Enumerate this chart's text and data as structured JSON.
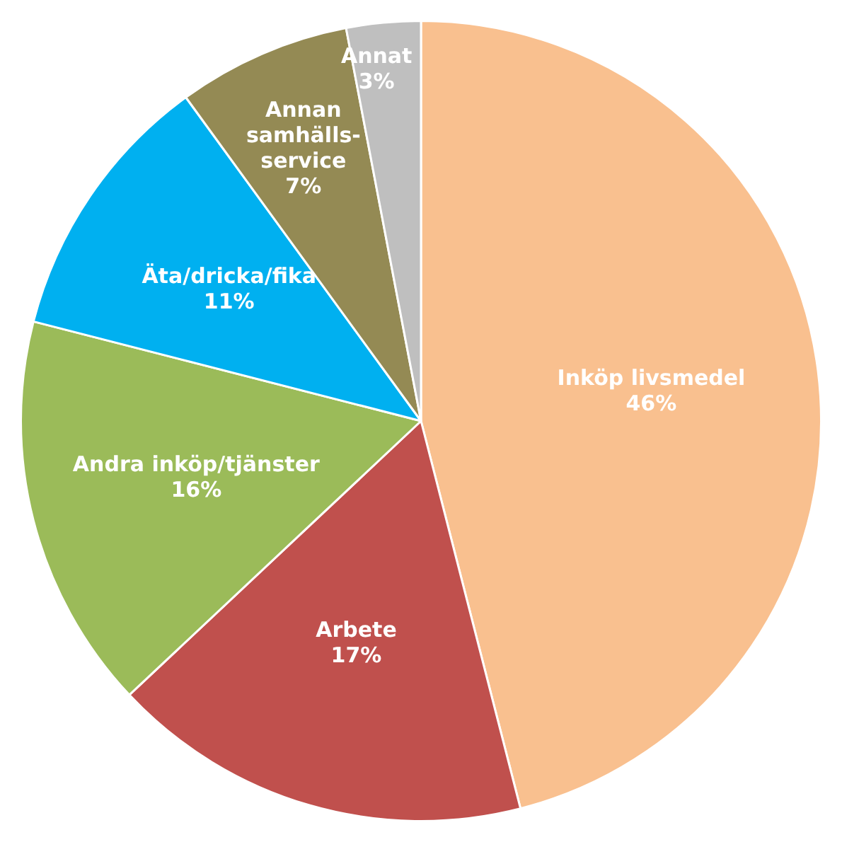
{
  "chart_data": {
    "type": "pie",
    "categories": [
      "Inköp livsmedel",
      "Arbete",
      "Andra inköp/tjänster",
      "Äta/dricka/fika",
      "Annan samhälls-service",
      "Annat"
    ],
    "values": [
      46,
      17,
      16,
      11,
      7,
      3
    ],
    "colors": [
      "#f9c08f",
      "#c0504d",
      "#9bbb59",
      "#00b0f0",
      "#948a54",
      "#bfbfbf"
    ],
    "value_labels": [
      "46%",
      "17%",
      "16%",
      "11%",
      "7%",
      "3%"
    ],
    "legend": false
  }
}
